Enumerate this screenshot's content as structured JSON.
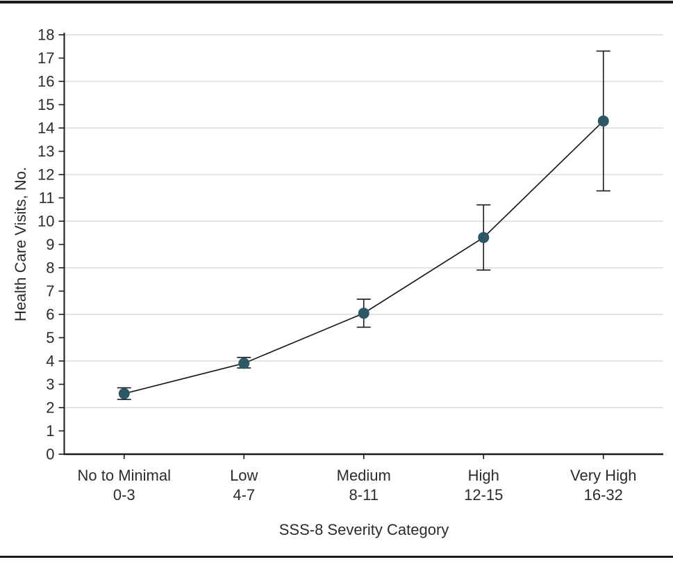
{
  "figure": {
    "background": "#ffffff",
    "rule_color": "#1a1a1a"
  },
  "chart_data": {
    "type": "line",
    "title": "",
    "xlabel": "SSS-8 Severity Category",
    "ylabel": "Health Care Visits, No.",
    "ylim": [
      0,
      18
    ],
    "ytick_step": 1,
    "ygrid_values": [
      2,
      4,
      6,
      8,
      10,
      12,
      14,
      16,
      18
    ],
    "grid": "horizontal gridlines at even values only",
    "legend_position": "none",
    "categories": [
      {
        "line1": "No to Minimal",
        "line2": "0-3"
      },
      {
        "line1": "Low",
        "line2": "4-7"
      },
      {
        "line1": "Medium",
        "line2": "8-11"
      },
      {
        "line1": "High",
        "line2": "12-15"
      },
      {
        "line1": "Very High",
        "line2": "16-32"
      }
    ],
    "series": [
      {
        "values": [
          2.6,
          3.9,
          6.05,
          9.3,
          14.3
        ],
        "ci_low": [
          2.35,
          3.7,
          5.45,
          7.9,
          11.3
        ],
        "ci_high": [
          2.85,
          4.15,
          6.65,
          10.7,
          17.3
        ]
      }
    ],
    "colors": {
      "marker": "#2e5866",
      "line": "#1a1a1a",
      "error_bar": "#1a1a1a",
      "grid": "#dcdcdc",
      "axis": "#1a1a1a",
      "text": "#2b2b2b"
    }
  }
}
